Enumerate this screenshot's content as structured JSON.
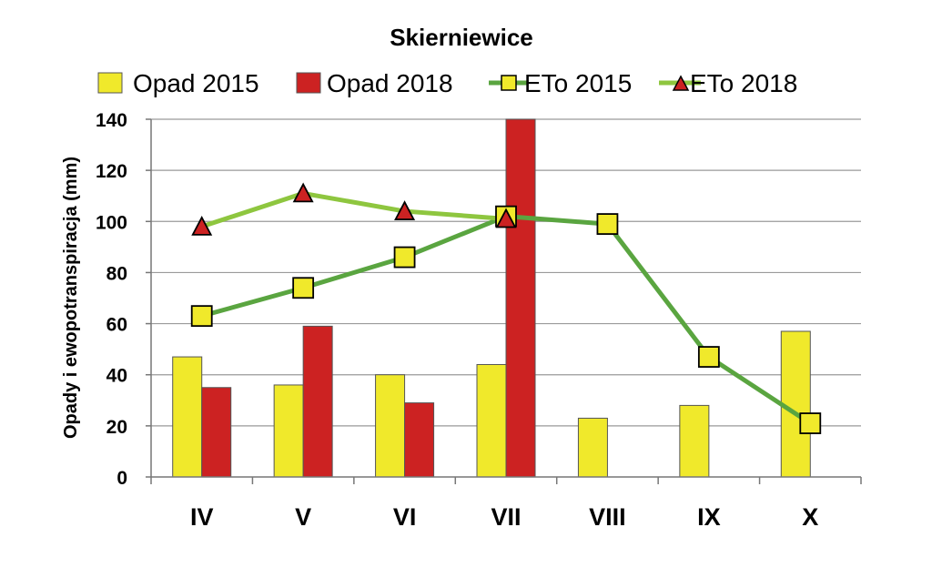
{
  "chart_data": {
    "type": "bar",
    "title": "Skierniewice",
    "ylabel": "Opady i ewopotranspiracja  (mm)",
    "xlabel": "",
    "ylim": [
      0,
      140
    ],
    "yticks": [
      0,
      20,
      40,
      60,
      80,
      100,
      120,
      140
    ],
    "categories": [
      "IV",
      "V",
      "VI",
      "VII",
      "VIII",
      "IX",
      "X"
    ],
    "grid": true,
    "legend_position": "top",
    "bar_series": [
      {
        "name": "Opad 2015",
        "color": "#f0e92b",
        "values": [
          47,
          36,
          40,
          44,
          23,
          28,
          57
        ]
      },
      {
        "name": "Opad 2018",
        "color": "#cc2222",
        "values": [
          35,
          59,
          29,
          140,
          null,
          null,
          null
        ]
      }
    ],
    "line_series": [
      {
        "name": "ETo 2015",
        "line_color": "#5aa540",
        "marker": "square",
        "marker_color": "#f0e92b",
        "values": [
          63,
          74,
          86,
          102,
          99,
          47,
          21
        ]
      },
      {
        "name": "ETo 2018",
        "line_color": "#8ec63f",
        "marker": "triangle",
        "marker_color": "#cc2222",
        "values": [
          98,
          111,
          104,
          101,
          null,
          null,
          null
        ]
      }
    ]
  }
}
